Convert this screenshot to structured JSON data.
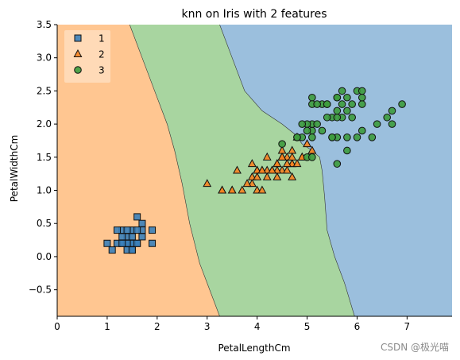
{
  "chart_data": {
    "type": "scatter",
    "title": "knn on Iris with 2 features",
    "xlabel": "PetalLengthCm",
    "ylabel": "PetalWidthCm",
    "xlim": [
      0,
      7.9
    ],
    "ylim": [
      -0.9,
      3.5
    ],
    "xticks": [
      "0",
      "1",
      "2",
      "3",
      "4",
      "5",
      "6",
      "7"
    ],
    "yticks": [
      "−0.5",
      "0.0",
      "0.5",
      "1.0",
      "1.5",
      "2.0",
      "2.5",
      "3.0",
      "3.5"
    ],
    "legend_position": "top-left",
    "grid": false,
    "regions": [
      {
        "name": "1",
        "color": "#ffc691"
      },
      {
        "name": "2",
        "color": "#a8d5a0"
      },
      {
        "name": "3",
        "color": "#9bbfdd"
      }
    ],
    "boundary_1_2": [
      [
        1.45,
        3.5
      ],
      [
        1.7,
        3.0
      ],
      [
        2.0,
        2.4
      ],
      [
        2.2,
        2.0
      ],
      [
        2.35,
        1.6
      ],
      [
        2.5,
        1.1
      ],
      [
        2.65,
        0.5
      ],
      [
        2.85,
        -0.1
      ],
      [
        3.05,
        -0.5
      ],
      [
        3.25,
        -0.9
      ]
    ],
    "boundary_2_3": [
      [
        3.25,
        3.5
      ],
      [
        3.5,
        3.0
      ],
      [
        3.75,
        2.5
      ],
      [
        4.1,
        2.2
      ],
      [
        4.5,
        2.0
      ],
      [
        4.75,
        1.85
      ],
      [
        4.9,
        1.7
      ],
      [
        5.1,
        1.6
      ],
      [
        5.25,
        1.5
      ],
      [
        5.3,
        1.3
      ],
      [
        5.35,
        0.9
      ],
      [
        5.4,
        0.4
      ],
      [
        5.55,
        0.0
      ],
      [
        5.75,
        -0.4
      ],
      [
        5.95,
        -0.9
      ]
    ],
    "series": [
      {
        "name": "1",
        "marker": "square",
        "color": "#3a80ba",
        "points": [
          [
            1.4,
            0.2
          ],
          [
            1.3,
            0.2
          ],
          [
            1.5,
            0.2
          ],
          [
            1.7,
            0.4
          ],
          [
            1.4,
            0.3
          ],
          [
            1.5,
            0.1
          ],
          [
            1.6,
            0.2
          ],
          [
            1.4,
            0.1
          ],
          [
            1.1,
            0.1
          ],
          [
            1.2,
            0.2
          ],
          [
            1.5,
            0.4
          ],
          [
            1.3,
            0.4
          ],
          [
            1.7,
            0.3
          ],
          [
            1.5,
            0.3
          ],
          [
            1.0,
            0.2
          ],
          [
            1.9,
            0.2
          ],
          [
            1.6,
            0.4
          ],
          [
            1.6,
            0.6
          ],
          [
            1.9,
            0.4
          ],
          [
            1.4,
            0.4
          ],
          [
            1.2,
            0.4
          ],
          [
            1.3,
            0.3
          ],
          [
            1.5,
            0.2
          ],
          [
            1.6,
            0.2
          ],
          [
            1.4,
            0.2
          ],
          [
            1.3,
            0.2
          ],
          [
            1.5,
            0.1
          ],
          [
            1.7,
            0.5
          ]
        ]
      },
      {
        "name": "2",
        "marker": "triangle",
        "color": "#f58220",
        "points": [
          [
            4.7,
            1.4
          ],
          [
            4.5,
            1.5
          ],
          [
            4.9,
            1.5
          ],
          [
            4.0,
            1.3
          ],
          [
            4.6,
            1.5
          ],
          [
            4.5,
            1.3
          ],
          [
            4.7,
            1.6
          ],
          [
            3.3,
            1.0
          ],
          [
            4.6,
            1.3
          ],
          [
            3.9,
            1.4
          ],
          [
            3.5,
            1.0
          ],
          [
            4.2,
            1.5
          ],
          [
            4.0,
            1.0
          ],
          [
            4.7,
            1.4
          ],
          [
            3.6,
            1.3
          ],
          [
            4.4,
            1.4
          ],
          [
            4.5,
            1.5
          ],
          [
            4.1,
            1.0
          ],
          [
            4.5,
            1.5
          ],
          [
            3.9,
            1.1
          ],
          [
            4.8,
            1.8
          ],
          [
            4.0,
            1.3
          ],
          [
            4.9,
            1.5
          ],
          [
            4.7,
            1.2
          ],
          [
            4.3,
            1.3
          ],
          [
            4.4,
            1.4
          ],
          [
            4.8,
            1.4
          ],
          [
            5.0,
            1.7
          ],
          [
            4.5,
            1.5
          ],
          [
            3.5,
            1.0
          ],
          [
            3.8,
            1.1
          ],
          [
            3.7,
            1.0
          ],
          [
            3.9,
            1.2
          ],
          [
            5.1,
            1.6
          ],
          [
            4.5,
            1.5
          ],
          [
            4.5,
            1.6
          ],
          [
            4.7,
            1.5
          ],
          [
            4.4,
            1.3
          ],
          [
            4.1,
            1.3
          ],
          [
            4.0,
            1.3
          ],
          [
            4.4,
            1.2
          ],
          [
            4.6,
            1.4
          ],
          [
            4.0,
            1.2
          ],
          [
            3.3,
            1.0
          ],
          [
            4.2,
            1.3
          ],
          [
            4.2,
            1.2
          ],
          [
            4.3,
            1.3
          ],
          [
            3.0,
            1.1
          ],
          [
            4.1,
            1.3
          ]
        ]
      },
      {
        "name": "3",
        "marker": "circle",
        "color": "#3d9b3d",
        "points": [
          [
            6.0,
            2.5
          ],
          [
            5.1,
            1.9
          ],
          [
            5.9,
            2.1
          ],
          [
            5.6,
            1.8
          ],
          [
            5.8,
            2.2
          ],
          [
            6.6,
            2.1
          ],
          [
            4.5,
            1.7
          ],
          [
            6.3,
            1.8
          ],
          [
            5.8,
            1.8
          ],
          [
            6.1,
            2.5
          ],
          [
            5.1,
            2.0
          ],
          [
            5.3,
            1.9
          ],
          [
            5.5,
            2.1
          ],
          [
            5.0,
            2.0
          ],
          [
            5.1,
            2.4
          ],
          [
            5.3,
            2.3
          ],
          [
            5.5,
            1.8
          ],
          [
            6.7,
            2.2
          ],
          [
            6.9,
            2.3
          ],
          [
            5.0,
            1.5
          ],
          [
            5.7,
            2.3
          ],
          [
            4.9,
            2.0
          ],
          [
            6.7,
            2.0
          ],
          [
            4.9,
            1.8
          ],
          [
            5.7,
            2.1
          ],
          [
            6.0,
            1.8
          ],
          [
            4.8,
            1.8
          ],
          [
            5.6,
            2.1
          ],
          [
            5.8,
            1.6
          ],
          [
            6.1,
            1.9
          ],
          [
            6.4,
            2.0
          ],
          [
            5.6,
            2.2
          ],
          [
            5.1,
            1.5
          ],
          [
            5.6,
            1.4
          ],
          [
            6.1,
            2.3
          ],
          [
            5.6,
            2.4
          ],
          [
            5.5,
            1.8
          ],
          [
            4.8,
            1.8
          ],
          [
            5.4,
            2.1
          ],
          [
            5.6,
            2.4
          ],
          [
            5.1,
            2.3
          ],
          [
            5.9,
            2.3
          ],
          [
            5.7,
            2.5
          ],
          [
            5.2,
            2.3
          ],
          [
            5.0,
            1.9
          ],
          [
            5.2,
            2.0
          ],
          [
            5.4,
            2.3
          ],
          [
            5.1,
            1.8
          ],
          [
            5.8,
            2.4
          ],
          [
            6.1,
            2.4
          ],
          [
            5.4,
            2.3
          ]
        ]
      }
    ]
  },
  "watermark": "CSDN @极光喵"
}
